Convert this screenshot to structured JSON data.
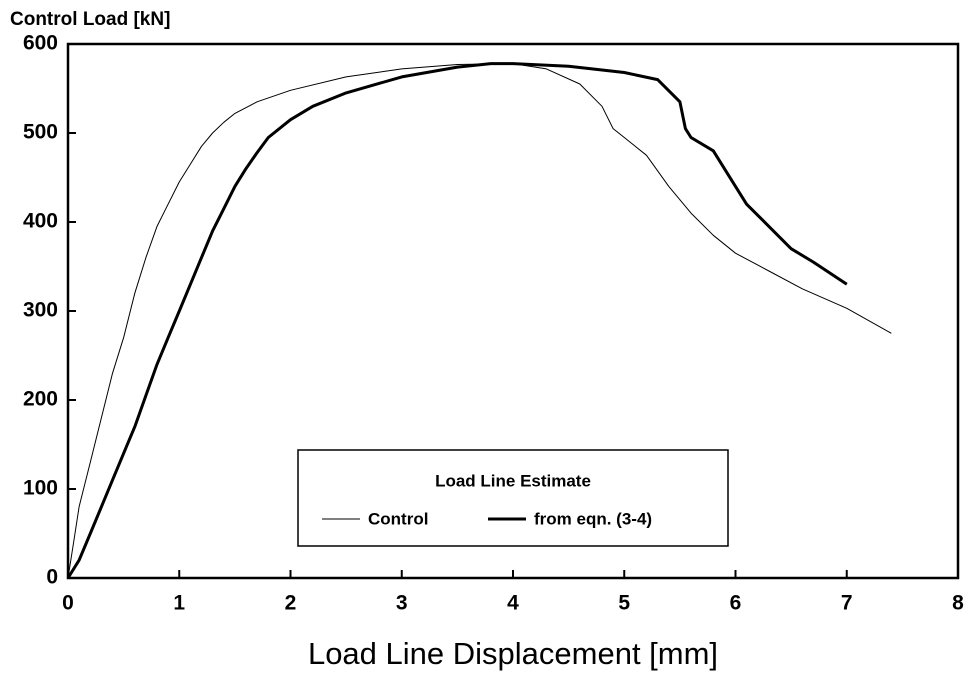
{
  "chart_data": {
    "type": "line",
    "title": "Control Load  [kN]",
    "xlabel": "Load Line Displacement  [mm]",
    "legend_title": "Load Line Estimate",
    "xlim": [
      0,
      8
    ],
    "xticks": [
      0,
      1,
      2,
      3,
      4,
      5,
      6,
      7,
      8
    ],
    "ylim": [
      0,
      600
    ],
    "yticks": [
      0,
      100,
      200,
      300,
      400,
      500,
      600
    ],
    "series": [
      {
        "name": "Control",
        "color": "#000000",
        "x": [
          0,
          0.05,
          0.1,
          0.2,
          0.3,
          0.4,
          0.5,
          0.6,
          0.7,
          0.8,
          0.9,
          1.0,
          1.1,
          1.2,
          1.3,
          1.4,
          1.5,
          1.7,
          2.0,
          2.5,
          3.0,
          3.5,
          4.0,
          4.3,
          4.6,
          4.8,
          4.9,
          5.0,
          5.2,
          5.4,
          5.6,
          5.8,
          6.0,
          6.3,
          6.6,
          7.0,
          7.4
        ],
        "values": [
          0,
          40,
          80,
          130,
          180,
          230,
          270,
          320,
          360,
          395,
          420,
          445,
          465,
          485,
          500,
          512,
          522,
          535,
          548,
          563,
          572,
          577,
          578,
          572,
          555,
          530,
          505,
          495,
          475,
          440,
          410,
          385,
          365,
          345,
          325,
          303,
          275
        ]
      },
      {
        "name": "from eqn. (3-4)",
        "color": "#000000",
        "x": [
          0,
          0.1,
          0.2,
          0.3,
          0.4,
          0.5,
          0.6,
          0.7,
          0.8,
          0.9,
          1.0,
          1.1,
          1.2,
          1.3,
          1.4,
          1.5,
          1.6,
          1.7,
          1.8,
          2.0,
          2.2,
          2.5,
          3.0,
          3.5,
          3.8,
          4.0,
          4.5,
          5.0,
          5.3,
          5.5,
          5.55,
          5.6,
          5.8,
          6.0,
          6.1,
          6.3,
          6.5,
          6.7,
          7.0
        ],
        "values": [
          0,
          20,
          50,
          80,
          110,
          140,
          170,
          205,
          240,
          270,
          300,
          330,
          360,
          390,
          415,
          440,
          460,
          478,
          495,
          515,
          530,
          545,
          563,
          574,
          578,
          578,
          575,
          568,
          560,
          535,
          505,
          495,
          480,
          440,
          420,
          395,
          370,
          355,
          330
        ]
      }
    ]
  }
}
